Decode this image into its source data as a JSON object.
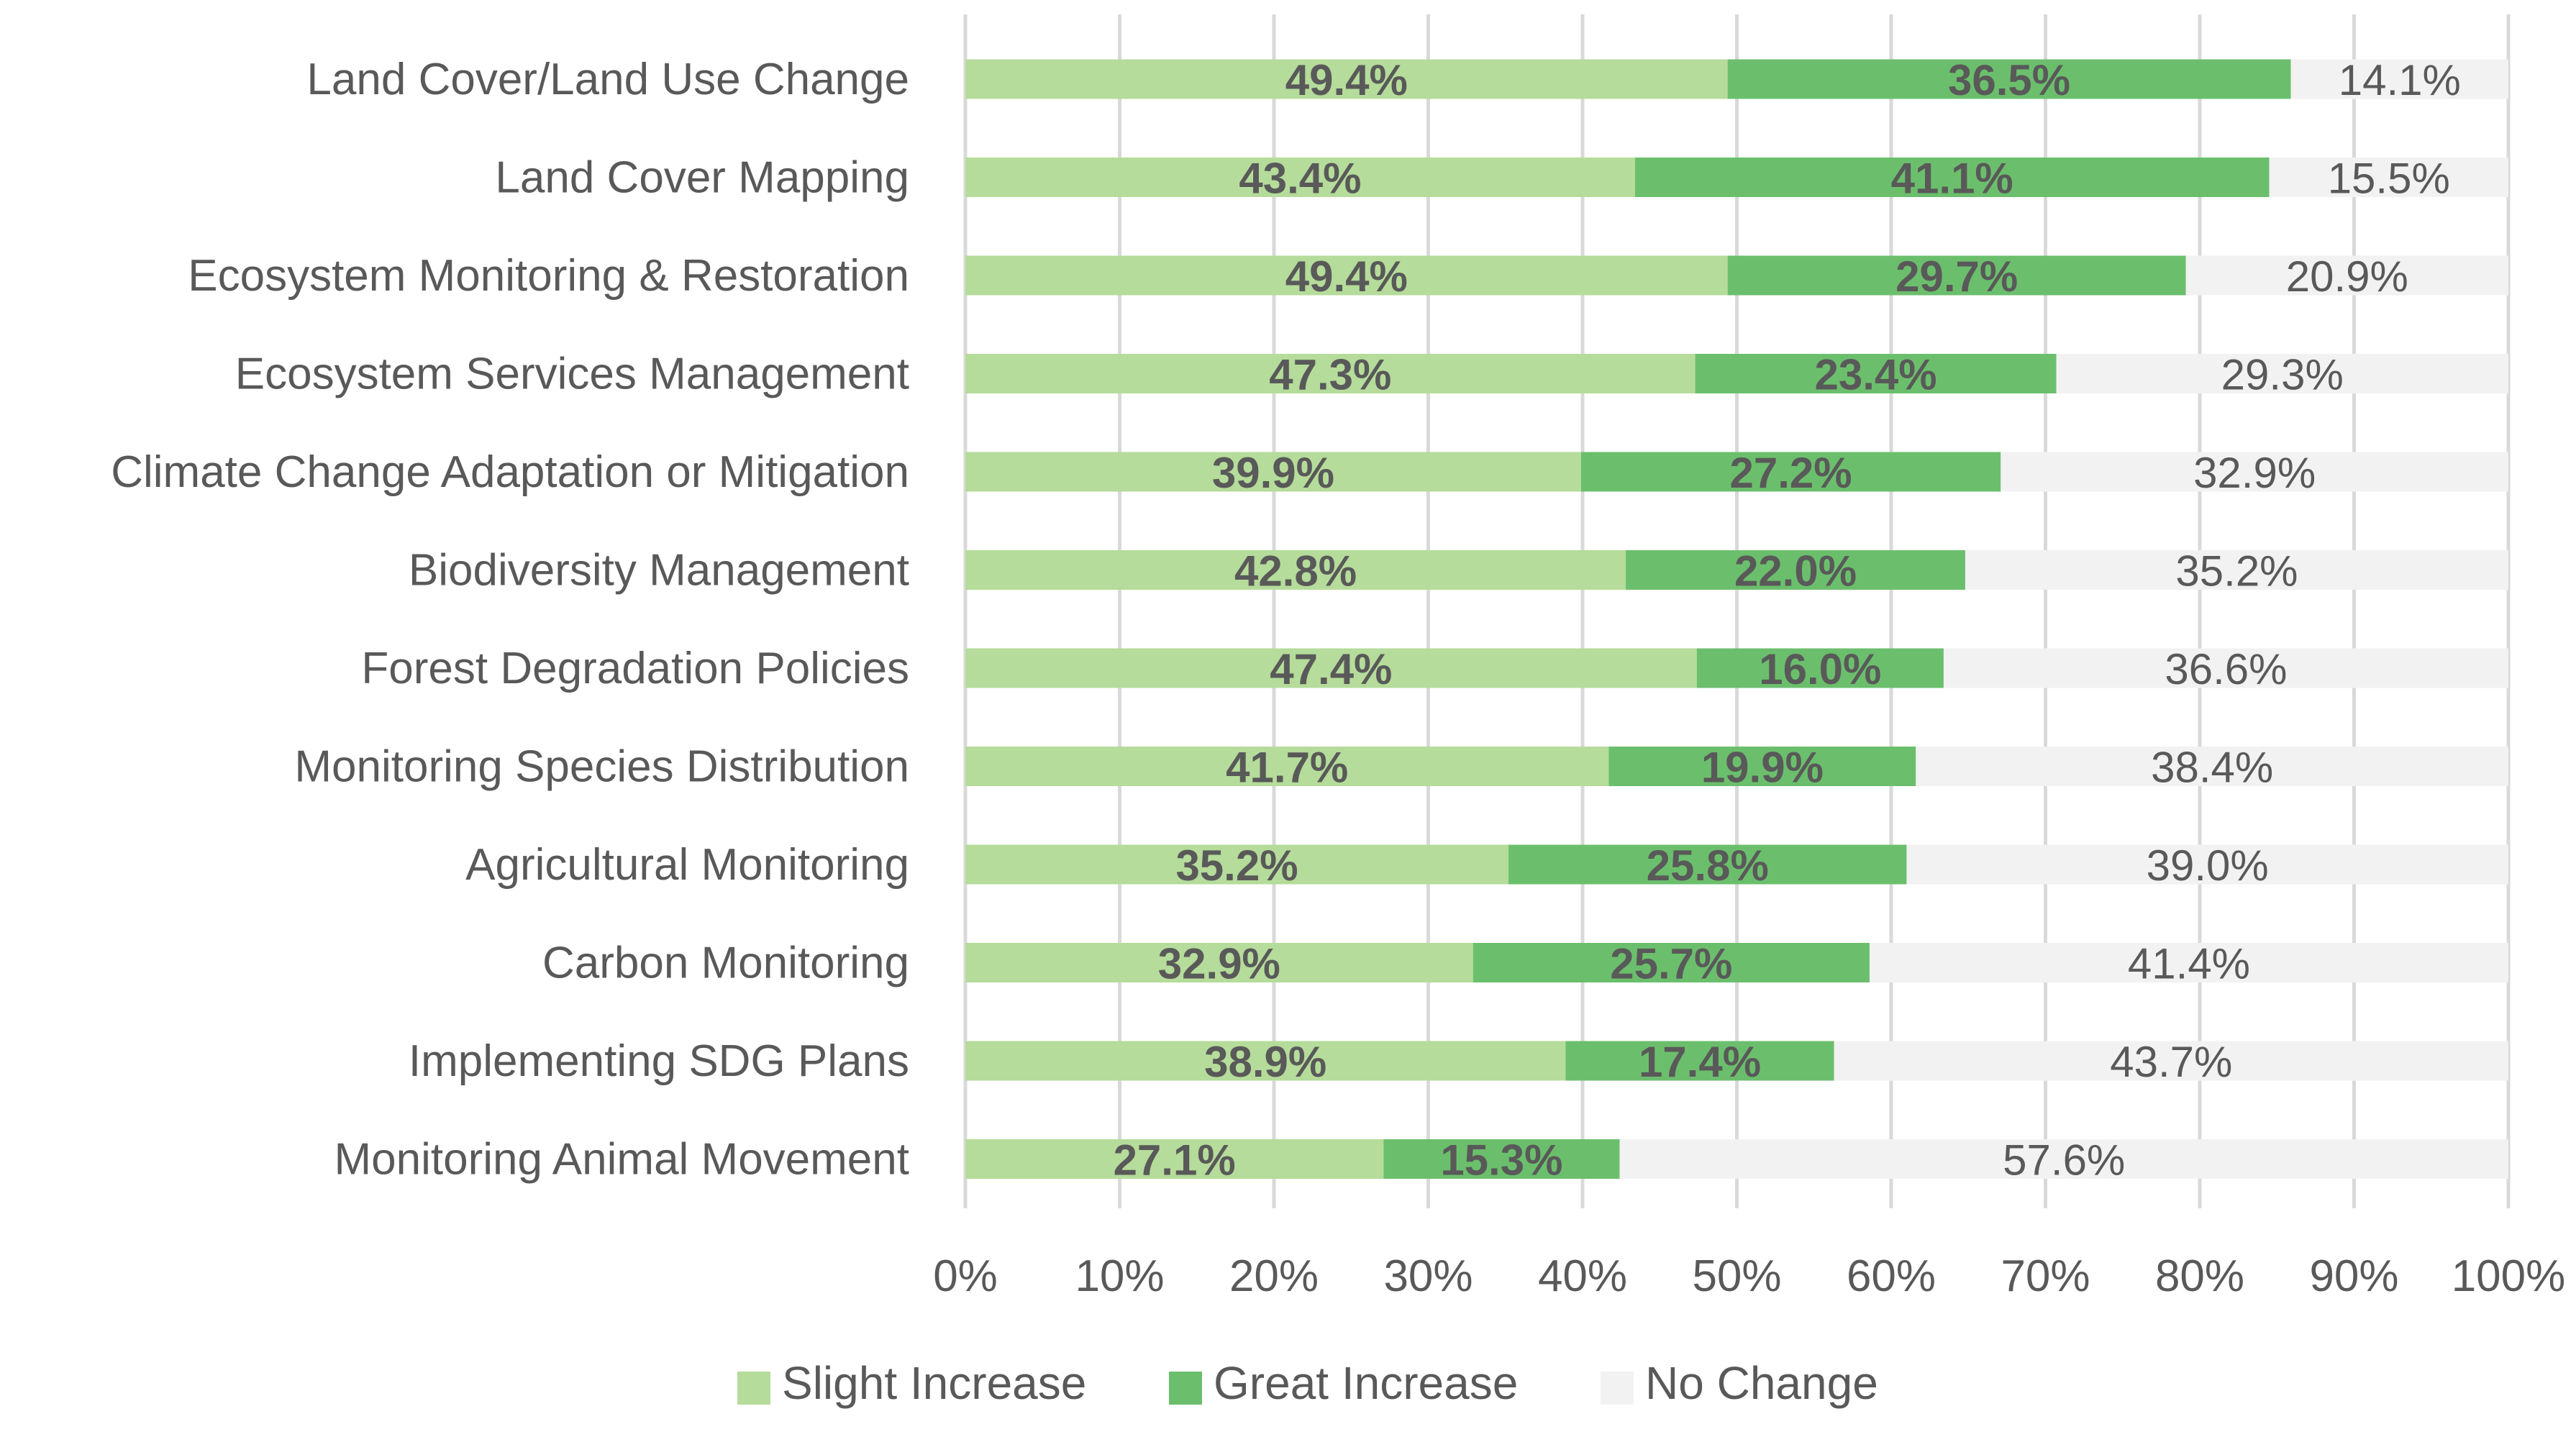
{
  "chart_data": {
    "type": "bar",
    "orientation": "horizontal",
    "stacked": "100%",
    "title": "",
    "xlabel": "",
    "ylabel": "",
    "xlim": [
      0,
      100
    ],
    "grid": true,
    "legend_position": "bottom",
    "x_ticks": [
      "0%",
      "10%",
      "20%",
      "30%",
      "40%",
      "50%",
      "60%",
      "70%",
      "80%",
      "90%",
      "100%"
    ],
    "categories": [
      "Land Cover/Land Use Change",
      "Land Cover Mapping",
      "Ecosystem Monitoring & Restoration",
      "Ecosystem Services Management",
      "Climate Change Adaptation or Mitigation",
      "Biodiversity Management",
      "Forest Degradation Policies",
      "Monitoring Species Distribution",
      "Agricultural Monitoring",
      "Carbon Monitoring",
      "Implementing SDG Plans",
      "Monitoring Animal Movement"
    ],
    "series": [
      {
        "name": "Slight Increase",
        "color": "#b5dc9a",
        "values": [
          49.4,
          43.4,
          49.4,
          47.3,
          39.9,
          42.8,
          47.4,
          41.7,
          35.2,
          32.9,
          38.9,
          27.1
        ],
        "labels": [
          "49.4%",
          "43.4%",
          "49.4%",
          "47.3%",
          "39.9%",
          "42.8%",
          "47.4%",
          "41.7%",
          "35.2%",
          "32.9%",
          "38.9%",
          "27.1%"
        ]
      },
      {
        "name": "Great Increase",
        "color": "#6bbf6c",
        "values": [
          36.5,
          41.1,
          29.7,
          23.4,
          27.2,
          22.0,
          16.0,
          19.9,
          25.8,
          25.7,
          17.4,
          15.3
        ],
        "labels": [
          "36.5%",
          "41.1%",
          "29.7%",
          "23.4%",
          "27.2%",
          "22.0%",
          "16.0%",
          "19.9%",
          "25.8%",
          "25.7%",
          "17.4%",
          "15.3%"
        ]
      },
      {
        "name": "No Change",
        "color": "#f2f2f2",
        "values": [
          14.1,
          15.5,
          20.9,
          29.3,
          32.9,
          35.2,
          36.6,
          38.4,
          39.0,
          41.4,
          43.7,
          57.6
        ],
        "labels": [
          "14.1%",
          "15.5%",
          "20.9%",
          "29.3%",
          "32.9%",
          "35.2%",
          "36.6%",
          "38.4%",
          "39.0%",
          "41.4%",
          "43.7%",
          "57.6%"
        ]
      }
    ]
  }
}
